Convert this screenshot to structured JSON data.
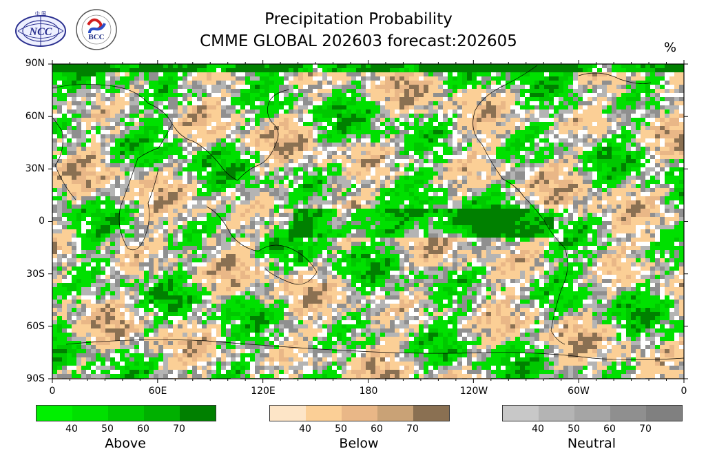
{
  "title": {
    "line1": "Precipitation Probability",
    "line2": "CMME GLOBAL 202603 forecast:202605"
  },
  "unit": "%",
  "logos": {
    "left": "NCC",
    "right": "BCC"
  },
  "axes": {
    "lat_labels": [
      "90N",
      "60N",
      "30N",
      "0",
      "30S",
      "60S",
      "90S"
    ],
    "lon_labels": [
      "0",
      "60E",
      "120E",
      "180",
      "120W",
      "60W",
      "0"
    ]
  },
  "legends": [
    {
      "name": "Above",
      "colors": [
        "#00f000",
        "#00e000",
        "#00c800",
        "#00b000",
        "#008000"
      ],
      "ticks": [
        "40",
        "50",
        "60",
        "70"
      ]
    },
    {
      "name": "Below",
      "colors": [
        "#fde5c7",
        "#fbcf96",
        "#e9b787",
        "#c9a276",
        "#8a7052"
      ],
      "ticks": [
        "40",
        "50",
        "60",
        "70"
      ]
    },
    {
      "name": "Neutral",
      "colors": [
        "#c8c8c8",
        "#b4b4b4",
        "#a5a5a5",
        "#8f8f8f",
        "#808080"
      ],
      "ticks": [
        "40",
        "50",
        "60",
        "70"
      ]
    }
  ],
  "field_colors": {
    "above": [
      "#00e000",
      "#00c800",
      "#008000"
    ],
    "below": [
      "#fbcf96",
      "#e9b787",
      "#8a7052"
    ],
    "neutral": [
      "#b4b4b4",
      "#8f8f8f"
    ]
  }
}
